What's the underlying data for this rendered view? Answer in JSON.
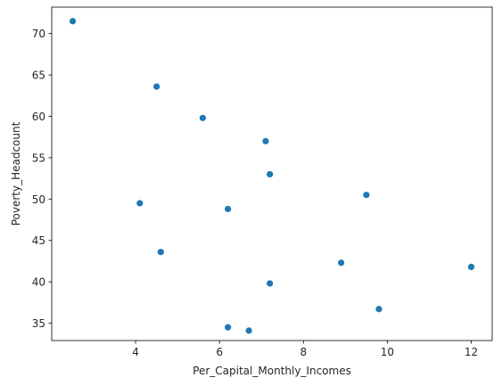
{
  "chart_data": {
    "type": "scatter",
    "title": "",
    "xlabel": "Per_Capital_Monthly_Incomes",
    "ylabel": "Poverty_Headcount",
    "xlim": [
      2.0,
      12.5
    ],
    "ylim": [
      32.9,
      73.2
    ],
    "xticks": [
      4,
      6,
      8,
      10,
      12
    ],
    "yticks": [
      35,
      40,
      45,
      50,
      55,
      60,
      65,
      70
    ],
    "grid": false,
    "marker_color": "#1f77b4",
    "points": [
      {
        "x": 2.5,
        "y": 71.5
      },
      {
        "x": 4.5,
        "y": 63.6
      },
      {
        "x": 5.6,
        "y": 59.8
      },
      {
        "x": 7.1,
        "y": 57.0
      },
      {
        "x": 7.2,
        "y": 53.0
      },
      {
        "x": 9.5,
        "y": 50.5
      },
      {
        "x": 4.1,
        "y": 49.5
      },
      {
        "x": 6.2,
        "y": 48.8
      },
      {
        "x": 4.6,
        "y": 43.6
      },
      {
        "x": 8.9,
        "y": 42.3
      },
      {
        "x": 12.0,
        "y": 41.8
      },
      {
        "x": 7.2,
        "y": 39.8
      },
      {
        "x": 9.8,
        "y": 36.7
      },
      {
        "x": 6.2,
        "y": 34.5
      },
      {
        "x": 6.7,
        "y": 34.1
      }
    ]
  }
}
